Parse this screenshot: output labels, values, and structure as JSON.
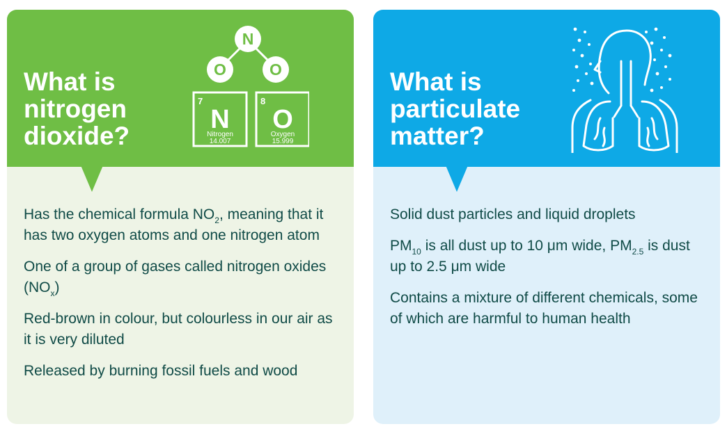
{
  "colors": {
    "green_accent": "#6fbe45",
    "blue_accent": "#0ea9e6",
    "text": "#0f4a46"
  },
  "no2_card": {
    "title_lines": [
      "What is",
      "nitrogen",
      "dioxide?"
    ],
    "icon": "no2-molecule-icon",
    "molecule": {
      "atom_top": "N",
      "atom_left": "O",
      "atom_right": "O",
      "tiles": [
        {
          "number": "7",
          "symbol": "N",
          "name": "Nitrogen",
          "mass": "14.007"
        },
        {
          "number": "8",
          "symbol": "O",
          "name": "Oxygen",
          "mass": "15.999"
        }
      ]
    },
    "items": [
      {
        "before": "Has the chemical formula NO",
        "sub": "2",
        "after": ", meaning that it has two oxygen atoms and one nitrogen atom"
      },
      {
        "before": "One of a group of gases called nitrogen oxides (NO",
        "sub": "x",
        "after": ")"
      },
      {
        "text": "Red-brown in colour, but colourless in our air as it is very diluted"
      },
      {
        "text": "Released by burning fossil fuels and wood"
      }
    ]
  },
  "pm_card": {
    "title_lines": [
      "What is",
      "particulate",
      "matter?"
    ],
    "icon": "lungs-dust-icon",
    "items": [
      {
        "text": "Solid dust particles and liquid droplets"
      },
      {
        "p1": "PM",
        "s1": "10",
        "mid": " is all dust up to 10 μm wide, PM",
        "s2": "2.5",
        "end": " is dust up to 2.5 μm wide"
      },
      {
        "text": "Contains a mixture of different chemicals, some of which are harmful to human health"
      }
    ]
  }
}
